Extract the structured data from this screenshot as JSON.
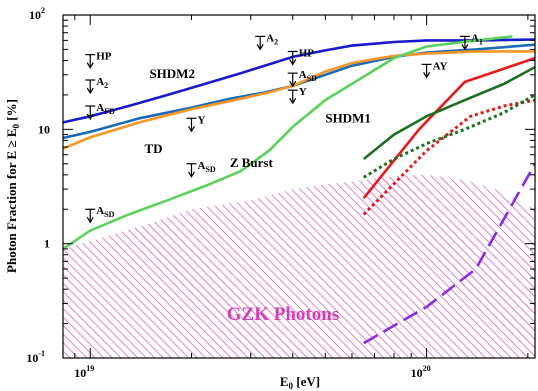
{
  "chart_data": {
    "type": "line",
    "xlabel": "E",
    "xlabel_sub": "0",
    "xlabel_unit": " [eV]",
    "ylabel": "Photon Fraction for E ≥ E",
    "ylabel_sub": "0",
    "ylabel_unit": " [%]",
    "x_scale": "log",
    "y_scale": "log",
    "xlim": [
      8.3e+18,
      2.1e+20
    ],
    "ylim": [
      0.1,
      100
    ],
    "x_ticks": [
      {
        "value": 1e+19,
        "base": "10",
        "exp": "19"
      },
      {
        "value": 1e+20,
        "base": "10",
        "exp": "20"
      }
    ],
    "y_ticks": [
      {
        "value": 0.1,
        "base": "10",
        "exp": "-1"
      },
      {
        "value": 1,
        "base": "1",
        "exp": ""
      },
      {
        "value": 10,
        "base": "10",
        "exp": ""
      },
      {
        "value": 100,
        "base": "10",
        "exp": "2"
      }
    ],
    "series": [
      {
        "name": "SHDM2",
        "color": "#1a1acc",
        "dash": "solid",
        "points": [
          [
            8.3e+18,
            11.5
          ],
          [
            1e+19,
            13
          ],
          [
            1.3e+19,
            16
          ],
          [
            1.7e+19,
            20
          ],
          [
            2.2e+19,
            25
          ],
          [
            2.8e+19,
            31
          ],
          [
            3.4e+19,
            37
          ],
          [
            4e+19,
            43
          ],
          [
            5e+19,
            49
          ],
          [
            6e+19,
            54
          ],
          [
            8e+19,
            58
          ],
          [
            1e+20,
            60
          ],
          [
            1.4e+20,
            60
          ],
          [
            2.1e+20,
            61
          ]
        ]
      },
      {
        "name": "SHDM1",
        "color": "#1a6ab5",
        "dash": "solid",
        "points": [
          [
            8.3e+18,
            8.4
          ],
          [
            1e+19,
            9.5
          ],
          [
            1.4e+19,
            12.5
          ],
          [
            2e+19,
            15.5
          ],
          [
            2.6e+19,
            18.5
          ],
          [
            3.3e+19,
            21
          ],
          [
            4e+19,
            24
          ],
          [
            5e+19,
            30
          ],
          [
            6e+19,
            36
          ],
          [
            8e+19,
            43
          ],
          [
            1e+20,
            47
          ],
          [
            1.4e+20,
            50
          ],
          [
            2.1e+20,
            55
          ]
        ]
      },
      {
        "name": "TD",
        "color": "#f5962a",
        "dash": "solid",
        "points": [
          [
            8.3e+18,
            6.8
          ],
          [
            1e+19,
            8.5
          ],
          [
            1.4e+19,
            11.5
          ],
          [
            2e+19,
            15
          ],
          [
            2.8e+19,
            18.5
          ],
          [
            3.4e+19,
            21
          ],
          [
            4e+19,
            24
          ],
          [
            5e+19,
            32
          ],
          [
            6e+19,
            38
          ],
          [
            8e+19,
            44
          ],
          [
            1e+20,
            46
          ],
          [
            1.4e+20,
            48
          ],
          [
            2.1e+20,
            48
          ]
        ]
      },
      {
        "name": "Z Burst",
        "color": "#5ad15a",
        "dash": "solid",
        "points": [
          [
            8.3e+18,
            0.9
          ],
          [
            1e+19,
            1.3
          ],
          [
            1.3e+19,
            1.8
          ],
          [
            1.7e+19,
            2.4
          ],
          [
            2.2e+19,
            3.2
          ],
          [
            2.8e+19,
            4.3
          ],
          [
            3.4e+19,
            6.5
          ],
          [
            4e+19,
            10.5
          ],
          [
            5e+19,
            18
          ],
          [
            6e+19,
            25
          ],
          [
            8e+19,
            42
          ],
          [
            1e+20,
            53
          ],
          [
            1.4e+20,
            60
          ],
          [
            1.8e+20,
            65
          ]
        ]
      },
      {
        "name": "",
        "color": "#e41a1a",
        "dash": "solid",
        "points": [
          [
            6.5e+19,
            2.5
          ],
          [
            9.5e+19,
            10
          ],
          [
            1.3e+20,
            26
          ],
          [
            1.6e+20,
            32
          ],
          [
            2.1e+20,
            42
          ]
        ]
      },
      {
        "name": "",
        "color": "#e41a1a",
        "dash": "dotted",
        "points": [
          [
            6.5e+19,
            1.8
          ],
          [
            1e+20,
            6.5
          ],
          [
            1.35e+20,
            13
          ],
          [
            1.7e+20,
            16
          ],
          [
            2.1e+20,
            18
          ]
        ]
      },
      {
        "name": "",
        "color": "#1f6e1f",
        "dash": "solid",
        "points": [
          [
            6.5e+19,
            5.5
          ],
          [
            8e+19,
            9
          ],
          [
            1e+20,
            13
          ],
          [
            1.3e+20,
            18
          ],
          [
            1.7e+20,
            25
          ],
          [
            2.1e+20,
            35
          ]
        ]
      },
      {
        "name": "",
        "color": "#1f6e1f",
        "dash": "dotted",
        "points": [
          [
            6.5e+19,
            3.8
          ],
          [
            8e+19,
            5.5
          ],
          [
            1e+20,
            7.5
          ],
          [
            1.3e+20,
            10
          ],
          [
            1.7e+20,
            14
          ],
          [
            2.1e+20,
            20
          ]
        ]
      },
      {
        "name": "",
        "color": "#8a2be2",
        "dash": "long-dash",
        "points": [
          [
            6.5e+19,
            0.135
          ],
          [
            1e+20,
            0.28
          ],
          [
            1.4e+20,
            0.6
          ],
          [
            2.1e+20,
            5
          ]
        ]
      }
    ],
    "gzk_band": {
      "label": "GZK Photons",
      "color": "#d13fb5",
      "upper": [
        [
          8.3e+18,
          0.9
        ],
        [
          1e+19,
          1.05
        ],
        [
          1.5e+19,
          1.5
        ],
        [
          2e+19,
          2
        ],
        [
          3e+19,
          2.4
        ],
        [
          4e+19,
          3
        ],
        [
          5e+19,
          3.3
        ],
        [
          6e+19,
          3.5
        ],
        [
          8e+19,
          3.9
        ],
        [
          1e+20,
          4
        ],
        [
          1.3e+20,
          3.6
        ],
        [
          1.6e+20,
          3
        ],
        [
          1.9e+20,
          2.3
        ],
        [
          2.1e+20,
          2
        ]
      ]
    },
    "limits": [
      {
        "label": "HP",
        "sub": "",
        "x": 1e+19,
        "y": 45
      },
      {
        "label": "A",
        "sub": "2",
        "x": 1e+19,
        "y": 27
      },
      {
        "label": "A",
        "sub": "FD",
        "x": 1e+19,
        "y": 16
      },
      {
        "label": "A",
        "sub": "SD",
        "x": 1e+19,
        "y": 2
      },
      {
        "label": "Y",
        "sub": "",
        "x": 2e+19,
        "y": 12.5
      },
      {
        "label": "A",
        "sub": "SD",
        "x": 2e+19,
        "y": 5
      },
      {
        "label": "A",
        "sub": "2",
        "x": 3.2e+19,
        "y": 65
      },
      {
        "label": "HP",
        "sub": "",
        "x": 4e+19,
        "y": 48
      },
      {
        "label": "A",
        "sub": "SD",
        "x": 4e+19,
        "y": 31
      },
      {
        "label": "Y",
        "sub": "",
        "x": 4e+19,
        "y": 22
      },
      {
        "label": "A",
        "sub": "1",
        "x": 1.3e+20,
        "y": 65
      },
      {
        "label": "AY",
        "sub": "",
        "x": 1e+20,
        "y": 37
      }
    ],
    "annotations": [
      {
        "text": "SHDM2",
        "x": 1.5e+19,
        "y": 28
      },
      {
        "text": "SHDM1",
        "x": 5e+19,
        "y": 11.5
      },
      {
        "text": "TD",
        "x": 1.45e+19,
        "y": 6.2
      },
      {
        "text": "Z Burst",
        "x": 2.6e+19,
        "y": 4.7
      }
    ],
    "grid": false,
    "legend": "none"
  }
}
